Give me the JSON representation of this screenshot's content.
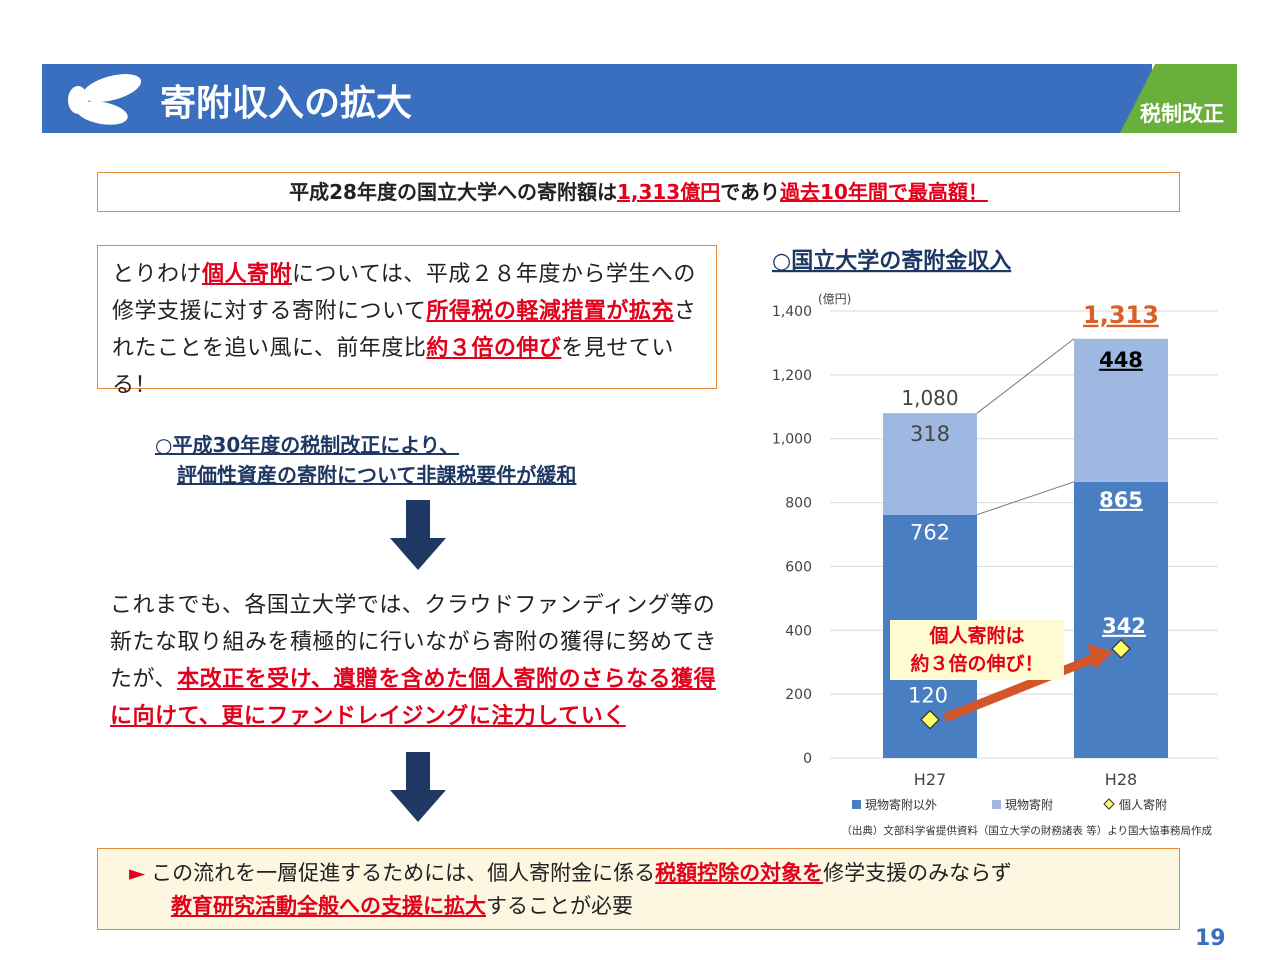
{
  "header": {
    "title": "寄附収入の拡大",
    "tag": "税制改正"
  },
  "headline": {
    "segments": [
      {
        "text": "平成28年度の国立大学への寄附額は",
        "em": false
      },
      {
        "text": "1,313億円",
        "em": true
      },
      {
        "text": "であり",
        "em": false
      },
      {
        "text": "過去10年間で最高額！",
        "em": true
      }
    ]
  },
  "box1": {
    "segments": [
      {
        "text": "とりわけ",
        "em": false
      },
      {
        "text": "個人寄附",
        "em": true
      },
      {
        "text": "については、平成２８年度から学生への修学支援に対する寄附について",
        "em": false
      },
      {
        "text": "所得税の軽減措置が拡充",
        "em": true
      },
      {
        "text": "されたことを追い風に、前年度比",
        "em": false
      },
      {
        "text": "約３倍の伸び",
        "em": true
      },
      {
        "text": "を見せている！",
        "em": false
      }
    ]
  },
  "note": {
    "lines": [
      "○平成30年度の税制改正により、",
      "評価性資産の寄附について非課税要件が緩和"
    ]
  },
  "para2": {
    "segments": [
      {
        "text": "これまでも、各国立大学では、クラウドファンディング等の新たな取り組みを積極的に行いながら寄附の獲得に努めてきたが、",
        "em": false
      },
      {
        "text": "本改正を受け、遺贈を含めた個人寄附のさらなる獲得に向けて、更にファンドレイジングに注力していく",
        "em": true
      }
    ]
  },
  "bottom": {
    "bullet": "►",
    "lines": [
      [
        {
          "text": "この流れを一層促進するためには、個人寄附金に係る",
          "em": false
        },
        {
          "text": "税額控除の対象を",
          "em": true
        },
        {
          "text": "修学支援のみならず",
          "em": false
        }
      ],
      [
        {
          "text": "教育研究活動全般への支援に拡大",
          "em": true
        },
        {
          "text": "することが必要",
          "em": false
        }
      ]
    ]
  },
  "chart_data": {
    "type": "stacked_bar",
    "title": "○国立大学の寄附金収入",
    "y_unit": "(億円)",
    "categories": [
      "H27",
      "H28"
    ],
    "series": [
      {
        "name": "現物寄附以外",
        "color": "#4a7ec2",
        "values": [
          762,
          865
        ]
      },
      {
        "name": "現物寄附",
        "color": "#9fb8e2",
        "values": [
          318,
          448
        ]
      }
    ],
    "points": {
      "name": "個人寄附",
      "color": "#ffff66",
      "values": [
        120,
        342
      ]
    },
    "totals": [
      1080,
      1313
    ],
    "total_labels": [
      "1,080",
      "1,313"
    ],
    "annotation": [
      "個人寄附は",
      "約３倍の伸び！"
    ],
    "ylim": [
      0,
      1400
    ],
    "yticks": [
      0,
      200,
      400,
      600,
      800,
      {
        "value": 1000,
        "label": "1,000"
      },
      {
        "value": 1200,
        "label": "1,200"
      },
      {
        "value": 1400,
        "label": "1,400"
      }
    ],
    "grid": true,
    "source": "（出典）文部科学省提供資料（国立大学の財務諸表 等）より国大協事務局作成"
  },
  "page_number": "19"
}
